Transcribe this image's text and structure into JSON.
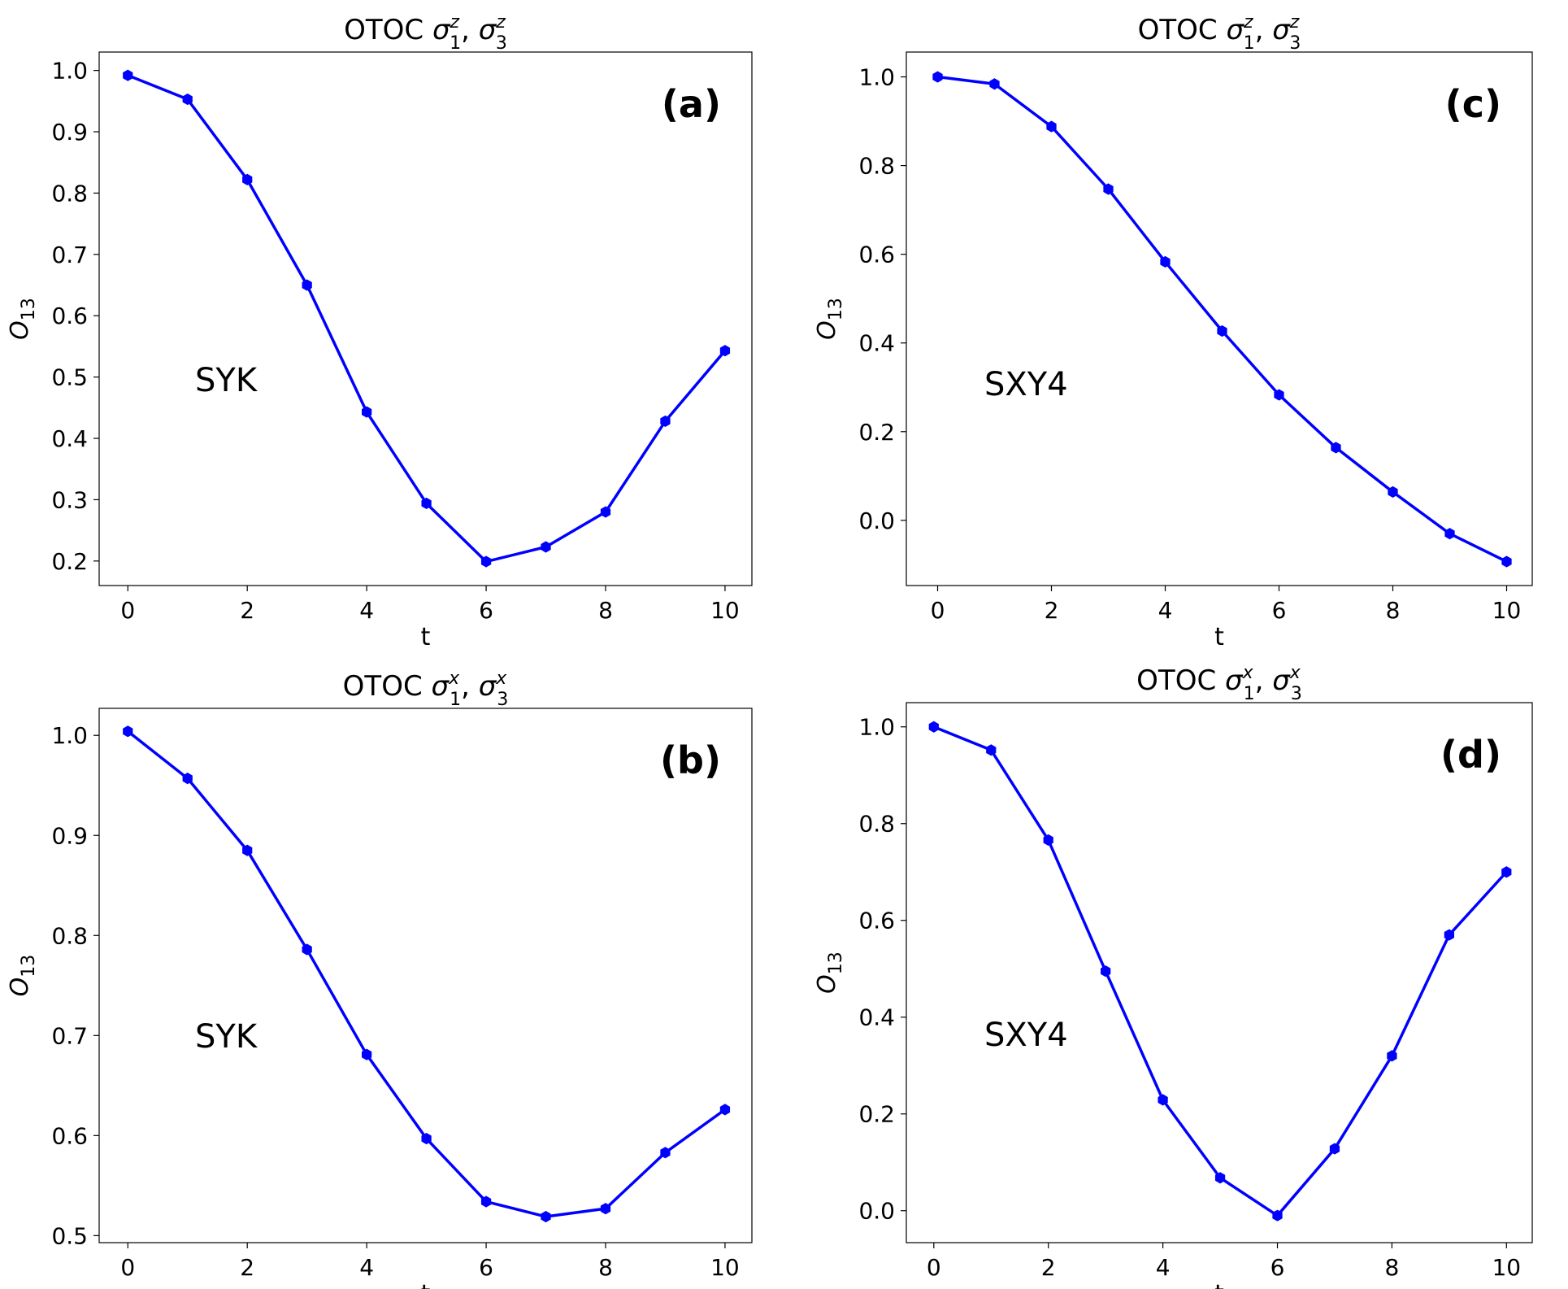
{
  "figure": {
    "xlabel": "t",
    "ylabel": "O_13"
  },
  "chart_data": [
    {
      "type": "line",
      "panel_label": "(a)",
      "model_label": "SYK",
      "title": "OTOC σ_1^z, σ_3^z",
      "title_prefix": "OTOC ",
      "title_symbol": "σ",
      "title_sup": "z",
      "title_sub1": "1",
      "title_sub2": "3",
      "xlabel": "t",
      "ylabel_main": "O",
      "ylabel_sub": "13",
      "x": [
        0,
        1,
        2,
        3,
        4,
        5,
        6,
        7,
        8,
        9,
        10
      ],
      "y": [
        0.992,
        0.953,
        0.822,
        0.65,
        0.443,
        0.294,
        0.199,
        0.223,
        0.28,
        0.428,
        0.543
      ],
      "xlim": [
        -0.48,
        10.45
      ],
      "ylim": [
        0.16,
        1.03
      ],
      "xticks": [
        0,
        2,
        4,
        6,
        8,
        10
      ],
      "yticks": [
        0.2,
        0.3,
        0.4,
        0.5,
        0.6,
        0.7,
        0.8,
        0.9,
        1.0
      ],
      "ytick_labels": [
        "0.2",
        "0.3",
        "0.4",
        "0.5",
        "0.6",
        "0.7",
        "0.8",
        "0.9",
        "1.0"
      ],
      "color": "#0000ff"
    },
    {
      "type": "line",
      "panel_label": "(b)",
      "model_label": "SYK",
      "title": "OTOC σ_1^x, σ_3^x",
      "title_prefix": "OTOC ",
      "title_symbol": "σ",
      "title_sup": "x",
      "title_sub1": "1",
      "title_sub2": "3",
      "xlabel": "t",
      "ylabel_main": "O",
      "ylabel_sub": "13",
      "x": [
        0,
        1,
        2,
        3,
        4,
        5,
        6,
        7,
        8,
        9,
        10
      ],
      "y": [
        1.004,
        0.957,
        0.885,
        0.786,
        0.681,
        0.597,
        0.534,
        0.519,
        0.527,
        0.583,
        0.626
      ],
      "xlim": [
        -0.48,
        10.45
      ],
      "ylim": [
        0.493,
        1.027
      ],
      "xticks": [
        0,
        2,
        4,
        6,
        8,
        10
      ],
      "yticks": [
        0.5,
        0.6,
        0.7,
        0.8,
        0.9,
        1.0
      ],
      "ytick_labels": [
        "0.5",
        "0.6",
        "0.7",
        "0.8",
        "0.9",
        "1.0"
      ],
      "color": "#0000ff"
    },
    {
      "type": "line",
      "panel_label": "(c)",
      "model_label": "SXY4",
      "title": "OTOC σ_1^z, σ_3^z",
      "title_prefix": "OTOC ",
      "title_symbol": "σ",
      "title_sup": "z",
      "title_sub1": "1",
      "title_sub2": "3",
      "xlabel": "t",
      "ylabel_main": "O",
      "ylabel_sub": "13",
      "x": [
        0,
        1,
        2,
        3,
        4,
        5,
        6,
        7,
        8,
        9,
        10
      ],
      "y": [
        1.0,
        0.984,
        0.888,
        0.747,
        0.583,
        0.427,
        0.283,
        0.164,
        0.064,
        -0.03,
        -0.093
      ],
      "xlim": [
        -0.55,
        10.45
      ],
      "ylim": [
        -0.147,
        1.056
      ],
      "xticks": [
        0,
        2,
        4,
        6,
        8,
        10
      ],
      "yticks": [
        0.0,
        0.2,
        0.4,
        0.6,
        0.8,
        1.0
      ],
      "ytick_labels": [
        "0.0",
        "0.2",
        "0.4",
        "0.6",
        "0.8",
        "1.0"
      ],
      "color": "#0000ff"
    },
    {
      "type": "line",
      "panel_label": "(d)",
      "model_label": "SXY4",
      "title": "OTOC σ_1^x, σ_3^x",
      "title_prefix": "OTOC ",
      "title_symbol": "σ",
      "title_sup": "x",
      "title_sub1": "1",
      "title_sub2": "3",
      "xlabel": "t",
      "ylabel_main": "O",
      "ylabel_sub": "13",
      "x": [
        0,
        1,
        2,
        3,
        4,
        5,
        6,
        7,
        8,
        9,
        10
      ],
      "y": [
        1.0,
        0.952,
        0.766,
        0.495,
        0.229,
        0.068,
        -0.01,
        0.128,
        0.32,
        0.57,
        0.7
      ],
      "xlim": [
        -0.48,
        10.45
      ],
      "ylim": [
        -0.066,
        1.05
      ],
      "xticks": [
        0,
        2,
        4,
        6,
        8,
        10
      ],
      "yticks": [
        0.0,
        0.2,
        0.4,
        0.6,
        0.8,
        1.0
      ],
      "ytick_labels": [
        "0.0",
        "0.2",
        "0.4",
        "0.6",
        "0.8",
        "1.0"
      ],
      "color": "#0000ff"
    }
  ]
}
